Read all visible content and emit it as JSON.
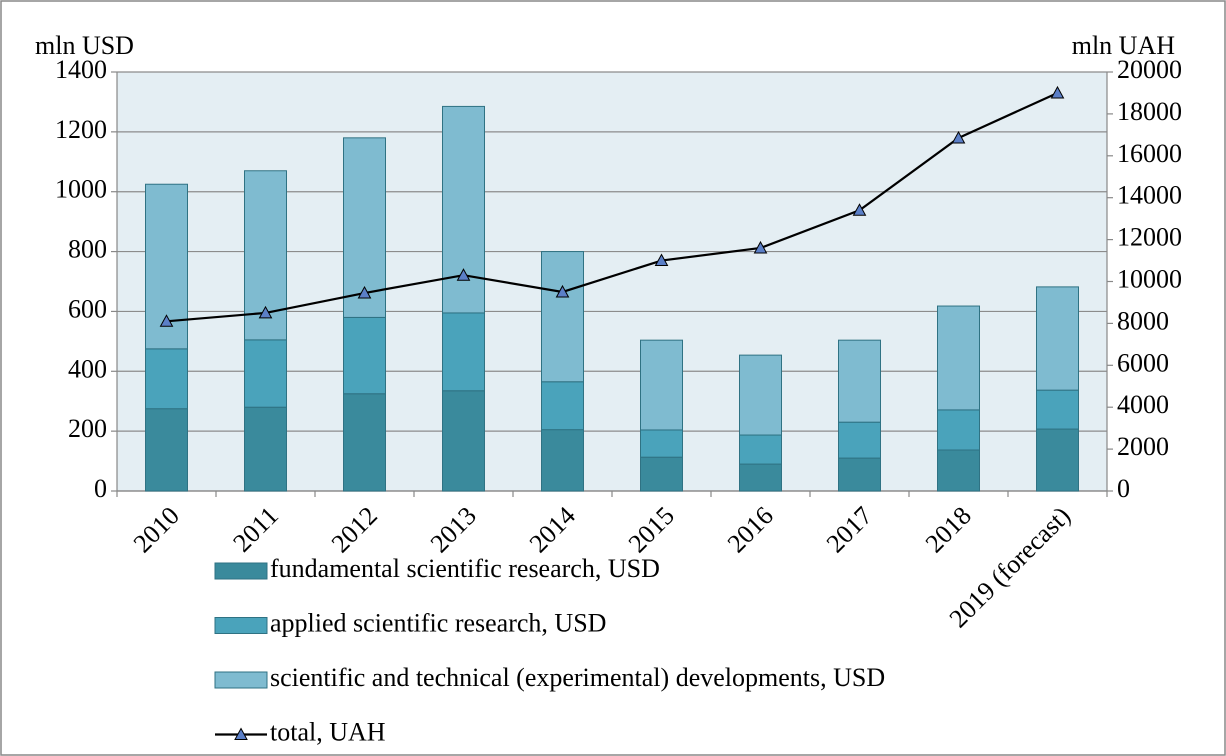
{
  "chart_data": {
    "type": "combo",
    "y_label": "mln USD",
    "y2_label": "mln UAH",
    "categories": [
      "2010",
      "2011",
      "2012",
      "2013",
      "2014",
      "2015",
      "2016",
      "2017",
      "2018",
      "2019 (forecast)"
    ],
    "series": [
      {
        "name": "fundamental scientific research, USD",
        "type": "bar",
        "color": "#3a8a9c",
        "values": [
          275,
          280,
          325,
          335,
          205,
          113,
          90,
          110,
          137,
          207
        ]
      },
      {
        "name": "applied scientific research, USD",
        "type": "bar",
        "color": "#4aa3bb",
        "values": [
          200,
          225,
          255,
          260,
          160,
          91,
          97,
          120,
          134,
          130
        ]
      },
      {
        "name": "scientific and technical (experimental) developments, USD",
        "type": "bar",
        "color": "#7fbbd0",
        "values": [
          550,
          565,
          600,
          690,
          435,
          300,
          267,
          274,
          347,
          345
        ]
      },
      {
        "name": "total, UAH",
        "type": "line",
        "axis": "y2",
        "color": "#000000",
        "marker_color": "#5b7fc7",
        "values": [
          8100,
          8500,
          9450,
          10300,
          9500,
          11000,
          11600,
          13400,
          16850,
          19000
        ]
      }
    ],
    "stacked": true,
    "ylim": [
      0,
      1400
    ],
    "yticks": [
      0,
      200,
      400,
      600,
      800,
      1000,
      1200,
      1400
    ],
    "y2lim": [
      0,
      20000
    ],
    "y2ticks": [
      0,
      2000,
      4000,
      6000,
      8000,
      10000,
      12000,
      14000,
      16000,
      18000,
      20000
    ],
    "grid": true,
    "plot_background": "#e4eef3"
  }
}
